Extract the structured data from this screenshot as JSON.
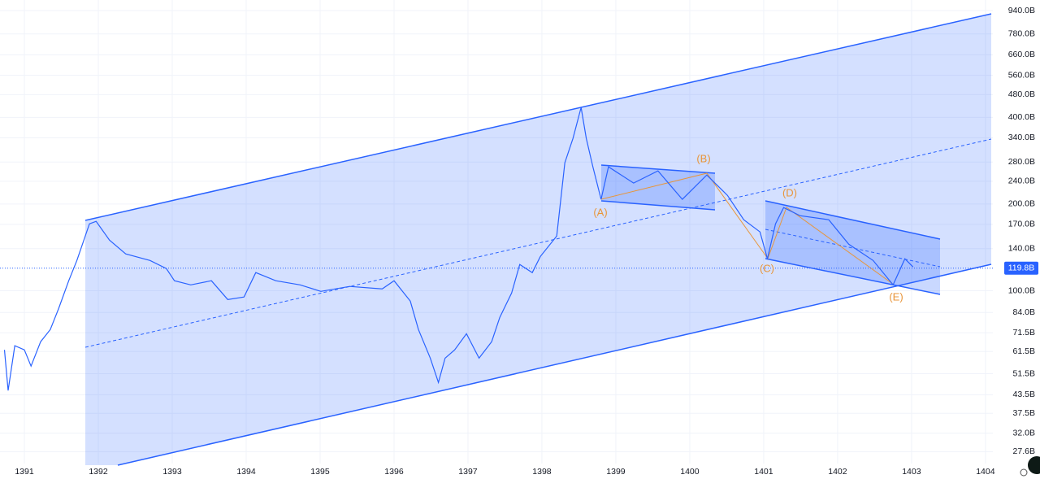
{
  "chart_data": {
    "type": "line",
    "log_scale": true,
    "grid": true,
    "xlim": [
      1390.67,
      1404.1
    ],
    "ylim": [
      25.1,
      1023
    ],
    "xticks": [
      1391,
      1392,
      1393,
      1394,
      1395,
      1396,
      1397,
      1398,
      1399,
      1400,
      1401,
      1402,
      1403,
      1404
    ],
    "yticks": [
      {
        "value": 940,
        "label": "940.0B"
      },
      {
        "value": 780,
        "label": "780.0B"
      },
      {
        "value": 660,
        "label": "660.0B"
      },
      {
        "value": 560,
        "label": "560.0B"
      },
      {
        "value": 480,
        "label": "480.0B"
      },
      {
        "value": 400,
        "label": "400.0B"
      },
      {
        "value": 340,
        "label": "340.0B"
      },
      {
        "value": 280,
        "label": "280.0B"
      },
      {
        "value": 240,
        "label": "240.0B"
      },
      {
        "value": 200,
        "label": "200.0B"
      },
      {
        "value": 170,
        "label": "170.0B"
      },
      {
        "value": 140,
        "label": "140.0B"
      },
      {
        "value": 100,
        "label": "100.0B"
      },
      {
        "value": 84,
        "label": "84.0B"
      },
      {
        "value": 71.5,
        "label": "71.5B"
      },
      {
        "value": 61.5,
        "label": "61.5B"
      },
      {
        "value": 51.5,
        "label": "51.5B"
      },
      {
        "value": 43.5,
        "label": "43.5B"
      },
      {
        "value": 37.5,
        "label": "37.5B"
      },
      {
        "value": 32,
        "label": "32.0B"
      },
      {
        "value": 27.6,
        "label": "27.6B"
      }
    ],
    "last_price": {
      "value": 119.8,
      "label": "119.8B"
    },
    "annotations": [
      "(A)",
      "(B)",
      "(C)",
      "(D)",
      "(E)"
    ],
    "series": [
      {
        "color": "#2962ff",
        "x": [
          1390.73,
          1390.78,
          1390.87,
          1391.0,
          1391.09,
          1391.22,
          1391.35,
          1391.46,
          1391.6,
          1391.71,
          1391.88,
          1391.97,
          1392.15,
          1392.37,
          1392.7,
          1392.92,
          1393.03,
          1393.25,
          1393.53,
          1393.75,
          1393.97,
          1394.13,
          1394.4,
          1394.73,
          1395.01,
          1395.4,
          1395.84,
          1396.0,
          1396.22,
          1396.33,
          1396.49,
          1396.6,
          1396.69,
          1396.82,
          1396.98,
          1397.15,
          1397.32,
          1397.43,
          1397.59,
          1397.7,
          1397.87,
          1397.98,
          1398.2,
          1398.31,
          1398.42,
          1398.53,
          1398.6,
          1398.69,
          1398.8,
          1398.9,
          1399.24,
          1399.57,
          1399.9,
          1400.23,
          1400.51,
          1400.73,
          1400.95,
          1401.05,
          1401.16,
          1401.27,
          1401.49,
          1401.88,
          1402.15,
          1402.48,
          1402.75,
          1402.91,
          1403.02
        ],
        "values": [
          62.3,
          45.0,
          64.4,
          62.3,
          54.7,
          66.5,
          73.3,
          86.3,
          108.3,
          127.4,
          170.8,
          174.2,
          150,
          134.3,
          127.4,
          119.4,
          108.3,
          104.8,
          108.3,
          93.2,
          95.1,
          115.6,
          108.3,
          104.8,
          99.5,
          103.5,
          101.5,
          108.3,
          92.0,
          73.3,
          58.3,
          48.0,
          58.3,
          62.3,
          70.9,
          58.3,
          66.5,
          80.8,
          98.2,
          123.4,
          115.6,
          131.6,
          154.9,
          278.3,
          338.2,
          433.2,
          338.2,
          269.4,
          207.7,
          269.4,
          236.6,
          260.8,
          207.7,
          252.4,
          214.5,
          176.4,
          160.0,
          129.1,
          170.8,
          194.5,
          182.3,
          176.4,
          145.1,
          127.4,
          104.8,
          129.1,
          121.0
        ]
      }
    ]
  }
}
